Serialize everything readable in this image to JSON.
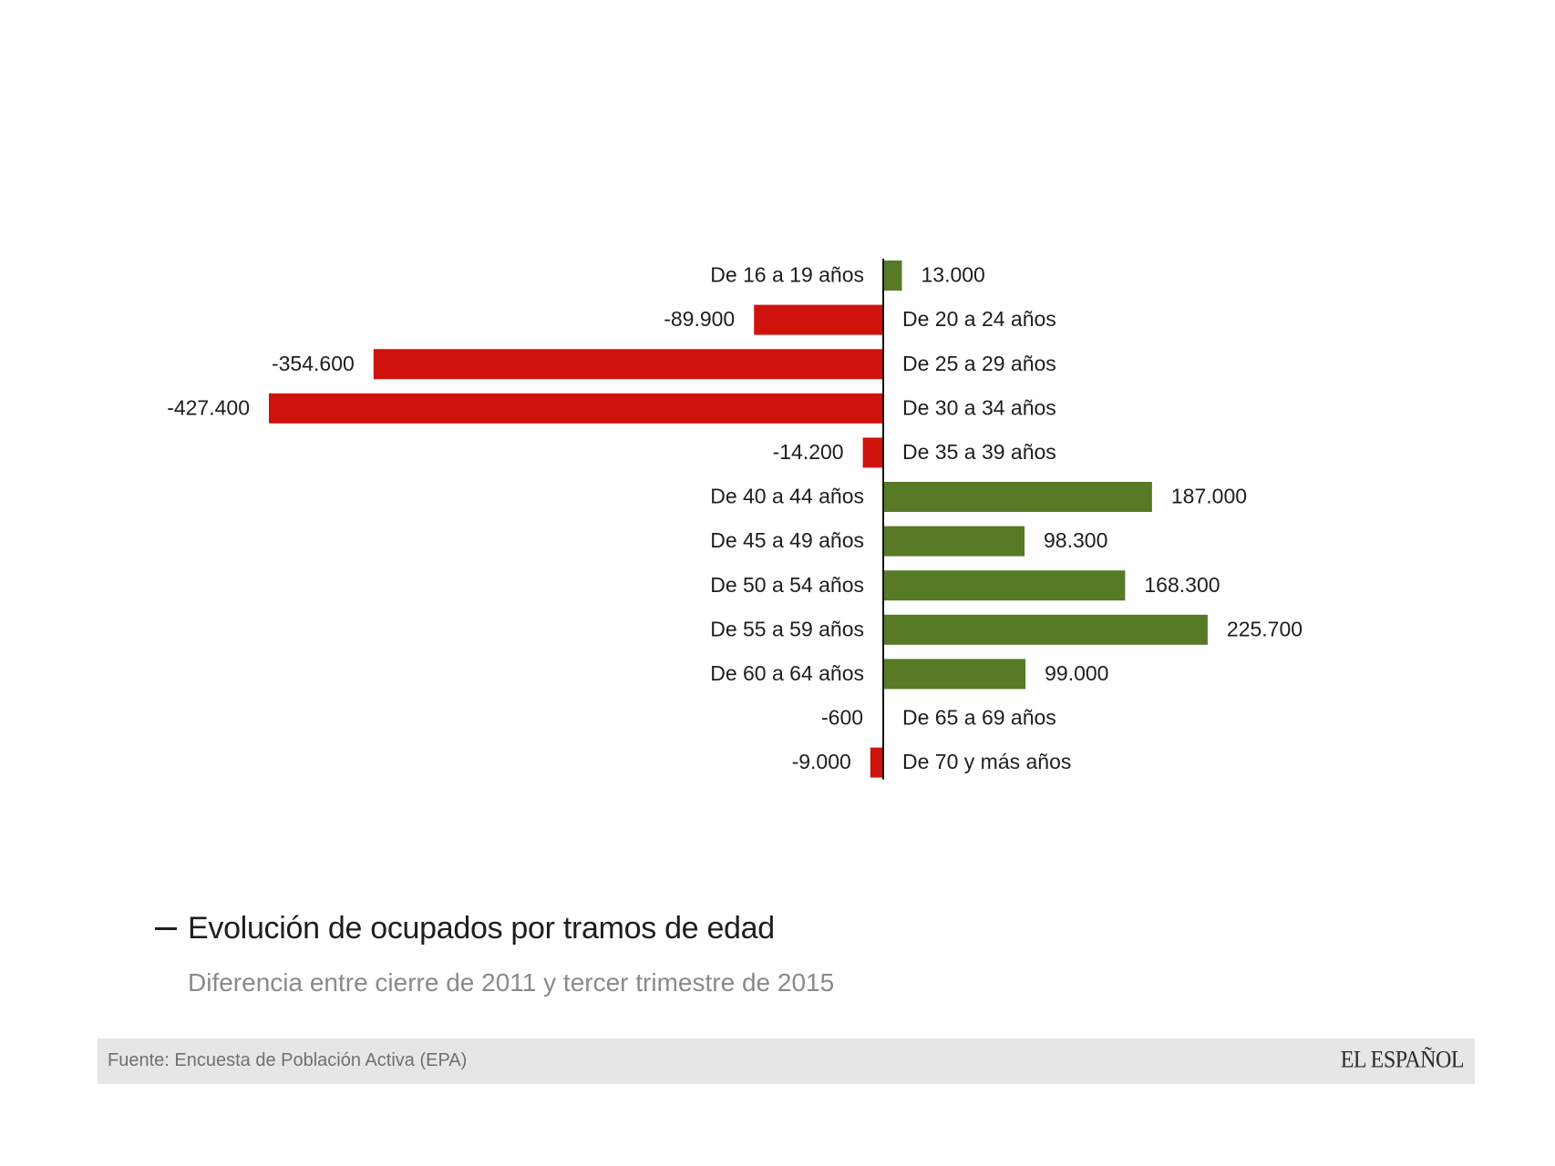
{
  "chart_data": {
    "type": "bar",
    "orientation": "horizontal",
    "categories": [
      "De 16 a 19 años",
      "De 20 a 24 años",
      "De 25 a 29 años",
      "De 30 a 34 años",
      "De 35 a 39 años",
      "De 40 a 44 años",
      "De 45 a 49 años",
      "De 50 a 54 años",
      "De 55 a 59 años",
      "De 60 a 64 años",
      "De 65 a 69 años",
      "De 70 y más años"
    ],
    "values": [
      13000,
      -89900,
      -354600,
      -427400,
      -14200,
      187000,
      98300,
      168300,
      225700,
      99000,
      -600,
      -9000
    ],
    "value_labels": [
      "13.000",
      "-89.900",
      "-354.600",
      "-427.400",
      "-14.200",
      "187.000",
      "98.300",
      "168.300",
      "225.700",
      "99.000",
      "-600",
      "-9.000"
    ],
    "colors": {
      "positive": "#567a25",
      "negative": "#cf130c",
      "axis": "#111111"
    },
    "title": "Evolución de ocupados por tramos de edad",
    "subtitle": "Diferencia entre cierre de 2011 y tercer trimestre de 2015"
  },
  "footer": {
    "source": "Fuente: Encuesta de Población Activa (EPA)",
    "logo_text": "EL ESPAÑOL"
  }
}
